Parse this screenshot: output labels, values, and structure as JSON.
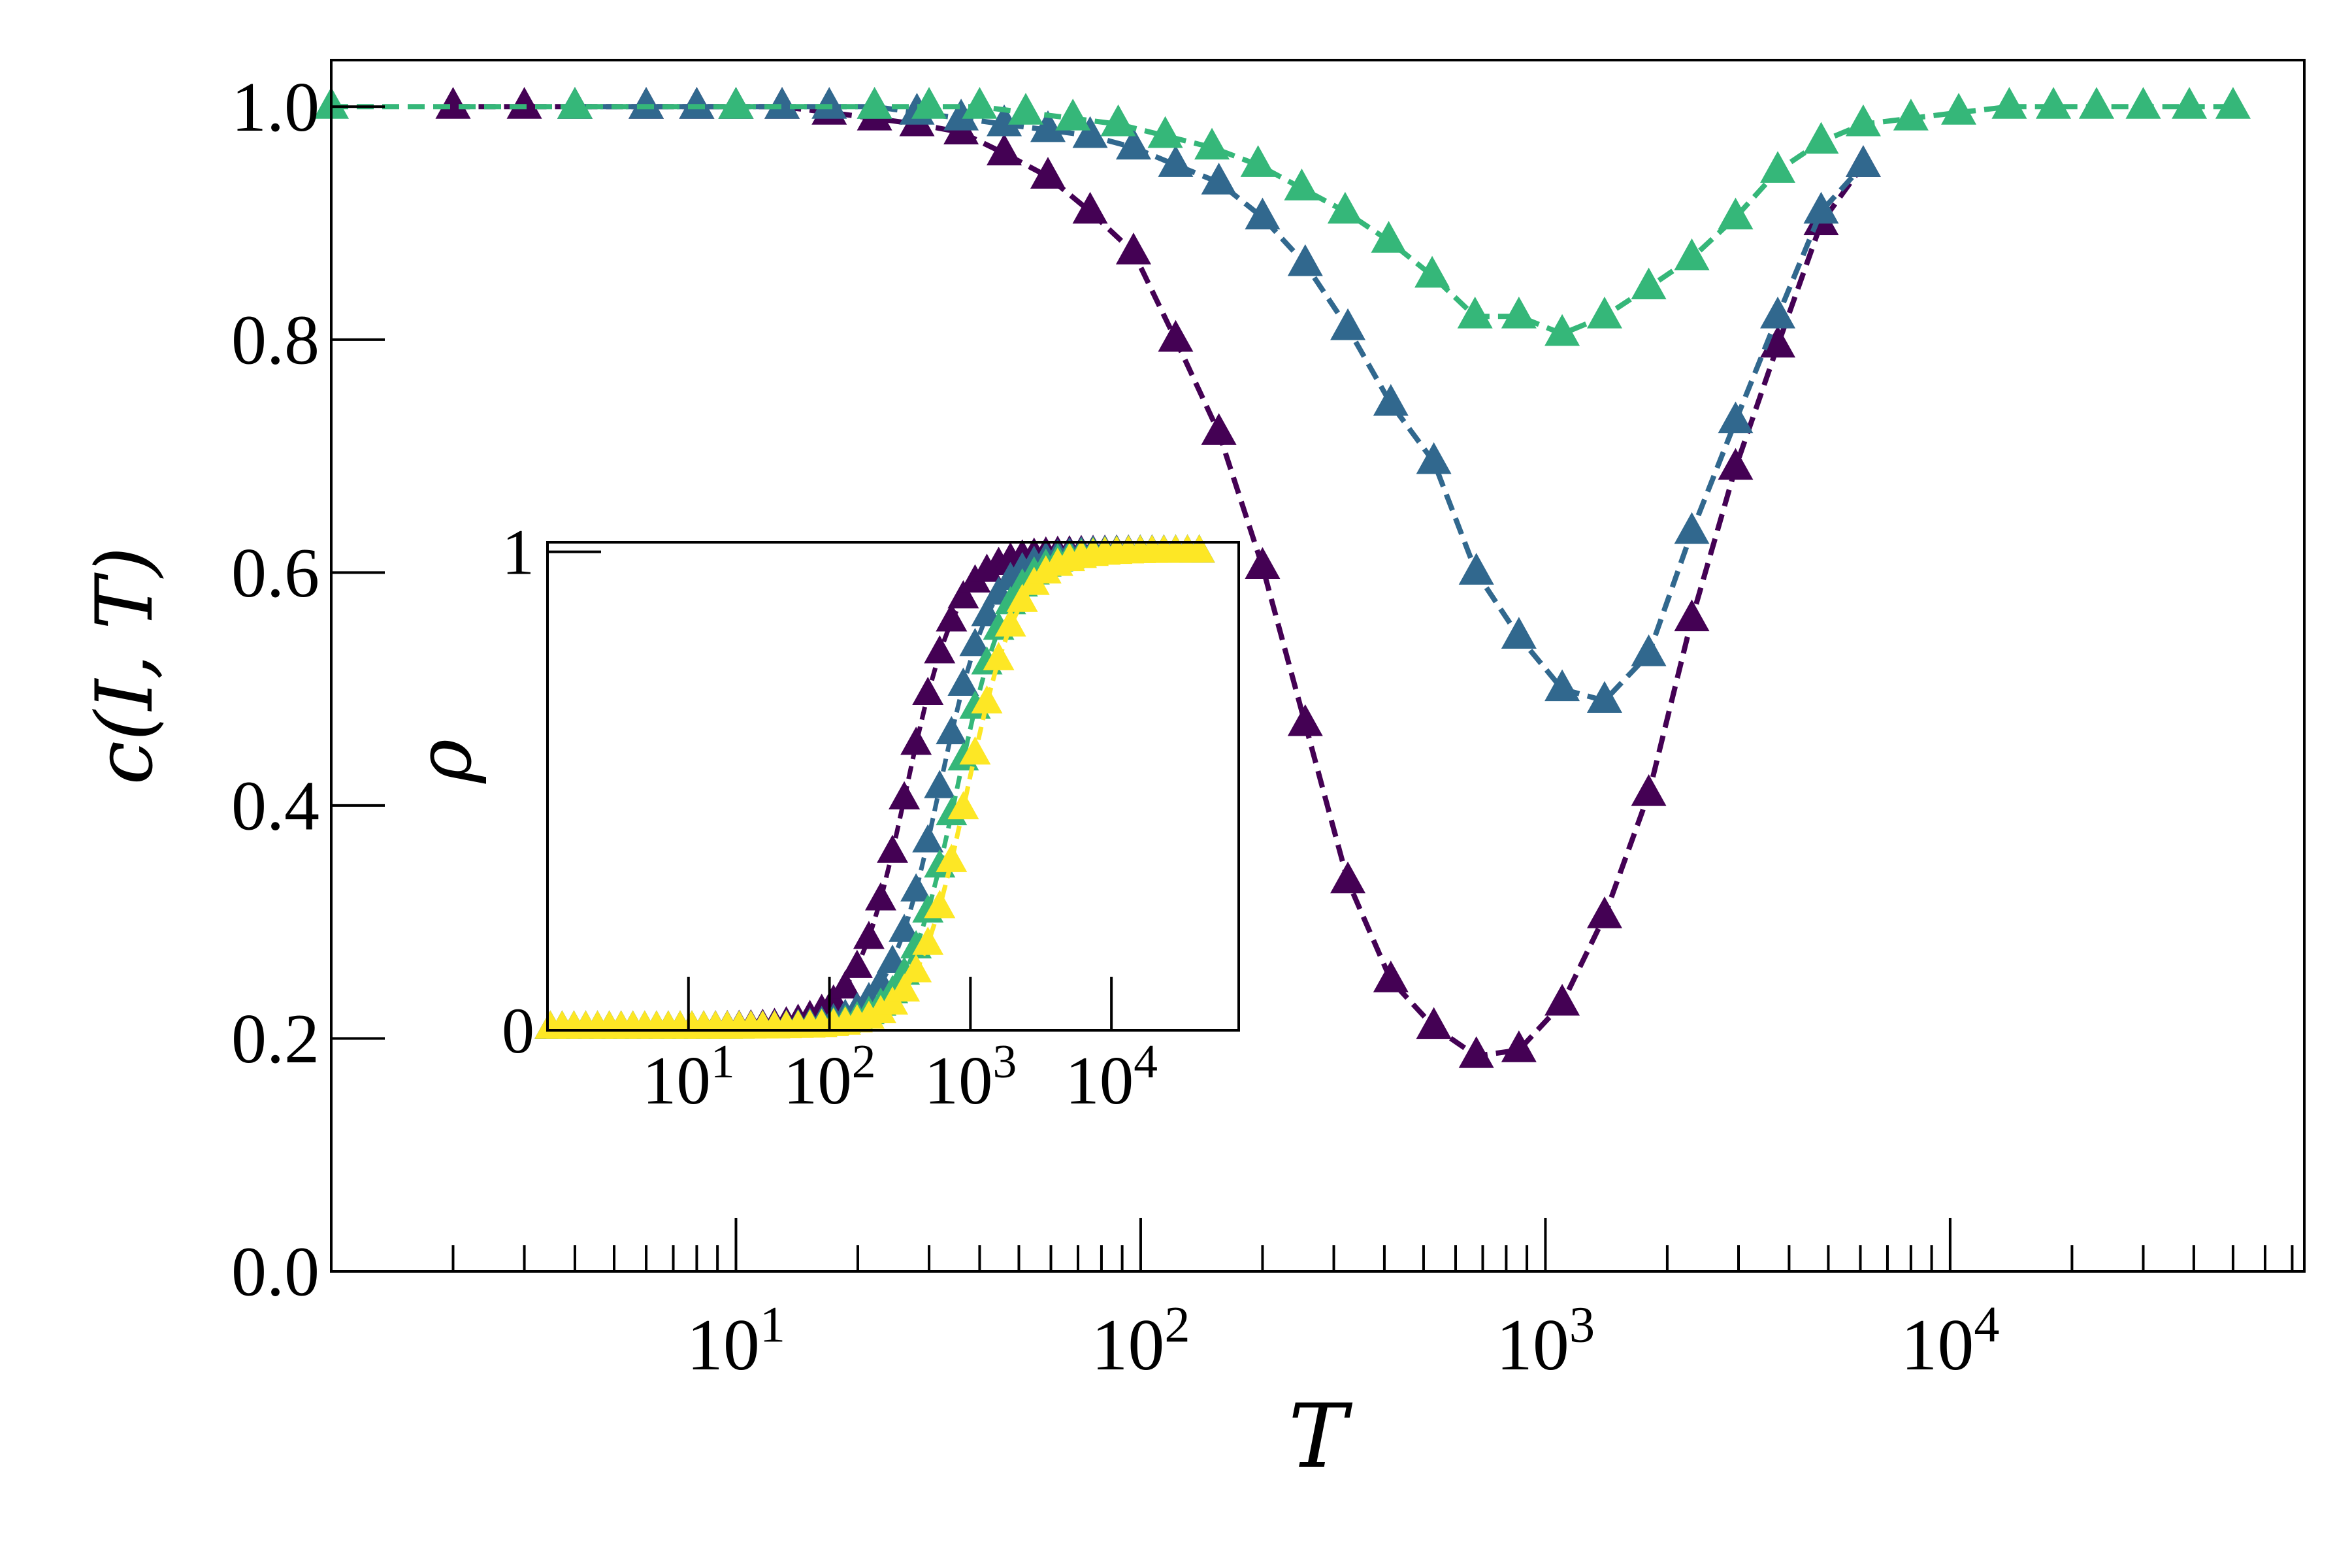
{
  "chart_data": [
    {
      "type": "line",
      "xlabel": "T",
      "ylabel": "c(I, T)",
      "xscale": "log",
      "xlim": [
        1,
        75000
      ],
      "ylim": [
        0,
        1.04
      ],
      "yticks": [
        "0.0",
        "0.2",
        "0.4",
        "0.6",
        "0.8",
        "1.0"
      ],
      "xticks": [
        {
          "base": "10",
          "exp": "1",
          "value": 10
        },
        {
          "base": "10",
          "exp": "2",
          "value": 100
        },
        {
          "base": "10",
          "exp": "3",
          "value": 1000
        },
        {
          "base": "10",
          "exp": "4",
          "value": 10000
        }
      ],
      "marker": "triangle",
      "line_style": "dashed",
      "series": [
        {
          "color": "#440154",
          "x": [
            2,
            3,
            4,
            6,
            8,
            10,
            13,
            17,
            22,
            28,
            36,
            46,
            59,
            75,
            96,
            122,
            156,
            200,
            255,
            325,
            415,
            530,
            675,
            860,
            1100,
            1400,
            1800,
            2300,
            2950,
            3750,
            4800,
            6100
          ],
          "y": [
            1.0,
            1.0,
            1.0,
            1.0,
            1.0,
            1.0,
            1.0,
            0.995,
            0.99,
            0.985,
            0.978,
            0.96,
            0.94,
            0.91,
            0.875,
            0.8,
            0.72,
            0.605,
            0.47,
            0.335,
            0.25,
            0.21,
            0.185,
            0.19,
            0.23,
            0.305,
            0.41,
            0.56,
            0.69,
            0.795,
            0.9,
            0.95
          ]
        },
        {
          "color": "#31688e",
          "x": [
            4,
            6,
            8,
            10,
            13,
            17,
            22,
            28,
            36,
            46,
            59,
            75,
            96,
            122,
            156,
            200,
            255,
            325,
            415,
            530,
            675,
            860,
            1100,
            1400,
            1800,
            2300,
            2950,
            3750,
            4800,
            6100
          ],
          "y": [
            1.0,
            1.0,
            1.0,
            1.0,
            1.0,
            1.0,
            1.0,
            0.995,
            0.99,
            0.985,
            0.98,
            0.975,
            0.965,
            0.95,
            0.935,
            0.905,
            0.865,
            0.81,
            0.745,
            0.695,
            0.6,
            0.545,
            0.5,
            0.49,
            0.53,
            0.635,
            0.73,
            0.82,
            0.91,
            0.95
          ]
        },
        {
          "color": "#35b779",
          "x": [
            1,
            4,
            10,
            22,
            30,
            40,
            52,
            68,
            88,
            115,
            150,
            195,
            250,
            320,
            410,
            525,
            670,
            860,
            1100,
            1400,
            1800,
            2300,
            2950,
            3750,
            4800,
            6100,
            8000,
            10500,
            14000,
            18000,
            23000,
            30000,
            39000,
            50000
          ],
          "y": [
            1.0,
            1.0,
            1.0,
            1.0,
            1.0,
            1.0,
            0.995,
            0.99,
            0.985,
            0.975,
            0.965,
            0.95,
            0.93,
            0.91,
            0.885,
            0.855,
            0.82,
            0.82,
            0.805,
            0.82,
            0.845,
            0.87,
            0.905,
            0.945,
            0.97,
            0.985,
            0.99,
            0.995,
            1.0,
            1.0,
            1.0,
            1.0,
            1.0,
            1.0
          ]
        }
      ]
    },
    {
      "type": "line",
      "xlabel": "",
      "ylabel": "ρ",
      "xscale": "log",
      "xlim": [
        1,
        80000
      ],
      "ylim": [
        0,
        1.02
      ],
      "yticks": [
        "0",
        "1"
      ],
      "xticks": [
        {
          "base": "10",
          "exp": "1",
          "value": 10
        },
        {
          "base": "10",
          "exp": "2",
          "value": 100
        },
        {
          "base": "10",
          "exp": "3",
          "value": 1000
        },
        {
          "base": "10",
          "exp": "4",
          "value": 10000
        }
      ],
      "marker": "triangle",
      "line_style": "dashed",
      "series": [
        {
          "color": "#440154",
          "midpoint": 350,
          "steepness": 2.4
        },
        {
          "color": "#31688e",
          "midpoint": 600,
          "steepness": 2.4
        },
        {
          "color": "#35b779",
          "midpoint": 800,
          "steepness": 2.4
        },
        {
          "color": "#fde725",
          "midpoint": 950,
          "steepness": 2.4
        }
      ]
    }
  ]
}
